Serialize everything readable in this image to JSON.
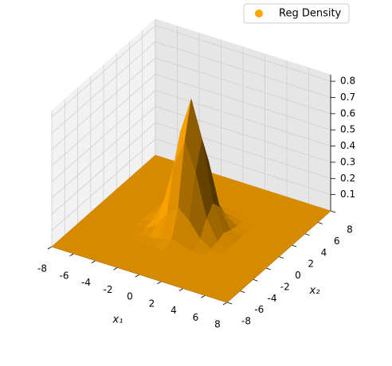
{
  "chart_data": {
    "type": "surface",
    "xlabel": "x₁",
    "ylabel": "x₂",
    "x": [
      -8,
      -7,
      -6,
      -5,
      -4,
      -3,
      -2,
      -1,
      0,
      1,
      2,
      3,
      4,
      5,
      6,
      7,
      8
    ],
    "y": [
      -8,
      -7,
      -6,
      -5,
      -4,
      -3,
      -2,
      -1,
      0,
      1,
      2,
      3,
      4,
      5,
      6,
      7,
      8
    ],
    "series": [
      {
        "name": "Reg Density",
        "color": "#ffa500",
        "values": [
          [
            0,
            0,
            0,
            0,
            0,
            0,
            0,
            0,
            0,
            0,
            0,
            0,
            0,
            0,
            0,
            0,
            0
          ],
          [
            0,
            0,
            0,
            0,
            0,
            0,
            0,
            0,
            0,
            0,
            0,
            0,
            0,
            0,
            0,
            0,
            0
          ],
          [
            0,
            0,
            0,
            0,
            0,
            0,
            0,
            0,
            0,
            0,
            0,
            0,
            0,
            0,
            0,
            0,
            0
          ],
          [
            0,
            0,
            0,
            0,
            0,
            0,
            0,
            0,
            0,
            0,
            0,
            0,
            0,
            0,
            0,
            0,
            0
          ],
          [
            0,
            0,
            0,
            0,
            0,
            0,
            0,
            0,
            0,
            0,
            0,
            0,
            0,
            0,
            0,
            0,
            0
          ],
          [
            0,
            0,
            0,
            0,
            0,
            0,
            0.01,
            0.02,
            0.04,
            0.02,
            0.01,
            0,
            0,
            0,
            0,
            0,
            0
          ],
          [
            0,
            0,
            0,
            0,
            0,
            0.01,
            0.05,
            0.14,
            0.2,
            0.14,
            0.05,
            0.01,
            0,
            0,
            0,
            0,
            0
          ],
          [
            0,
            0,
            0,
            0,
            0,
            0.02,
            0.14,
            0.4,
            0.57,
            0.4,
            0.14,
            0.02,
            0,
            0,
            0,
            0,
            0
          ],
          [
            0,
            0,
            0,
            0,
            0,
            0.04,
            0.2,
            0.57,
            0.8,
            0.57,
            0.2,
            0.04,
            0,
            0,
            0,
            0,
            0
          ],
          [
            0,
            0,
            0,
            0,
            0,
            0.02,
            0.14,
            0.4,
            0.57,
            0.4,
            0.14,
            0.02,
            0,
            0,
            0,
            0,
            0
          ],
          [
            0,
            0,
            0,
            0,
            0,
            0.01,
            0.05,
            0.14,
            0.2,
            0.14,
            0.05,
            0.01,
            0,
            0,
            0,
            0,
            0
          ],
          [
            0,
            0,
            0,
            0,
            0,
            0,
            0.01,
            0.02,
            0.04,
            0.02,
            0.01,
            0,
            0,
            0,
            0,
            0,
            0
          ],
          [
            0,
            0,
            0,
            0,
            0,
            0,
            0,
            0,
            0,
            0,
            0,
            0,
            0,
            0,
            0,
            0,
            0
          ],
          [
            0,
            0,
            0,
            0,
            0,
            0,
            0,
            0,
            0,
            0,
            0,
            0,
            0,
            0,
            0,
            0,
            0
          ],
          [
            0,
            0,
            0,
            0,
            0,
            0,
            0,
            0,
            0,
            0,
            0,
            0,
            0,
            0,
            0,
            0,
            0
          ],
          [
            0,
            0,
            0,
            0,
            0,
            0,
            0,
            0,
            0,
            0,
            0,
            0,
            0,
            0,
            0,
            0,
            0
          ],
          [
            0,
            0,
            0,
            0,
            0,
            0,
            0,
            0,
            0,
            0,
            0,
            0,
            0,
            0,
            0,
            0,
            0
          ]
        ]
      }
    ],
    "xlim": [
      -8,
      8
    ],
    "ylim": [
      -8,
      8
    ],
    "zlim": [
      0,
      0.84
    ],
    "xticks": [
      -8,
      -6,
      -4,
      -2,
      0,
      2,
      4,
      6,
      8
    ],
    "yticks": [
      -8,
      -6,
      -4,
      -2,
      0,
      2,
      4,
      6,
      8
    ],
    "zticks": [
      0.1,
      0.2,
      0.3,
      0.4,
      0.5,
      0.6,
      0.7,
      0.8
    ],
    "grid": true,
    "legend_loc": "upper right"
  }
}
